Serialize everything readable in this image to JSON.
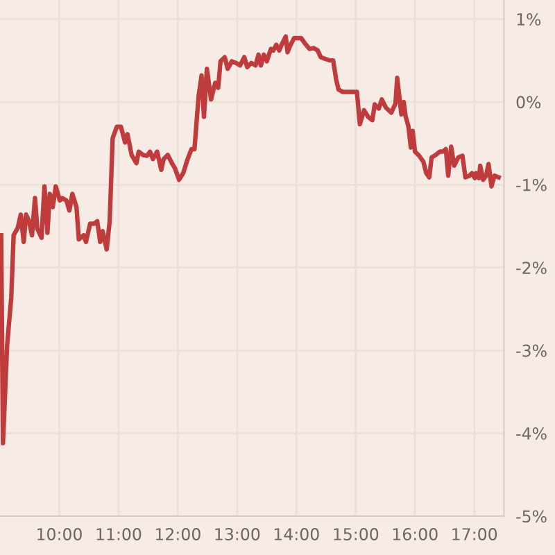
{
  "chart_data": {
    "type": "line",
    "xlim": [
      9,
      17.5
    ],
    "ylim": [
      -5,
      1.23
    ],
    "xticks": [
      {
        "value": 10,
        "label": "10:00"
      },
      {
        "value": 11,
        "label": "11:00"
      },
      {
        "value": 12,
        "label": "12:00"
      },
      {
        "value": 13,
        "label": "13:00"
      },
      {
        "value": 14,
        "label": "14:00"
      },
      {
        "value": 15,
        "label": "15:00"
      },
      {
        "value": 16,
        "label": "16:00"
      },
      {
        "value": 17,
        "label": "17:00"
      }
    ],
    "yticks": [
      {
        "value": 1,
        "label": "1%"
      },
      {
        "value": 0,
        "label": "0%"
      },
      {
        "value": -1,
        "label": "-1%"
      },
      {
        "value": -2,
        "label": "-2%"
      },
      {
        "value": -3,
        "label": "-3%"
      },
      {
        "value": -4,
        "label": "-4%"
      },
      {
        "value": -5,
        "label": "-5%"
      }
    ],
    "grid": true,
    "legend": false,
    "marker": "none",
    "line_style": "solid",
    "series": [
      {
        "color": "#c03b3b",
        "x": [
          9.02,
          9.05,
          9.12,
          9.19,
          9.23,
          9.3,
          9.35,
          9.4,
          9.44,
          9.49,
          9.54,
          9.59,
          9.63,
          9.7,
          9.75,
          9.8,
          9.84,
          9.89,
          9.94,
          10.01,
          10.05,
          10.12,
          10.17,
          10.22,
          10.29,
          10.33,
          10.41,
          10.45,
          10.52,
          10.59,
          10.64,
          10.69,
          10.73,
          10.8,
          10.85,
          10.9,
          10.97,
          11.04,
          11.11,
          11.15,
          11.22,
          11.3,
          11.34,
          11.41,
          11.48,
          11.53,
          11.58,
          11.65,
          11.72,
          11.76,
          11.83,
          11.9,
          11.95,
          12.02,
          12.09,
          12.16,
          12.23,
          12.28,
          12.35,
          12.4,
          12.44,
          12.49,
          12.56,
          12.63,
          12.68,
          12.72,
          12.79,
          12.84,
          12.91,
          12.98,
          13.05,
          13.12,
          13.17,
          13.24,
          13.31,
          13.36,
          13.4,
          13.45,
          13.5,
          13.57,
          13.61,
          13.66,
          13.71,
          13.75,
          13.82,
          13.85,
          13.89,
          13.96,
          14.04,
          14.08,
          14.15,
          14.22,
          14.29,
          14.36,
          14.41,
          14.48,
          14.57,
          14.62,
          14.67,
          14.71,
          14.78,
          14.85,
          14.97,
          15.02,
          15.07,
          15.14,
          15.21,
          15.28,
          15.32,
          15.39,
          15.44,
          15.51,
          15.6,
          15.67,
          15.7,
          15.77,
          15.81,
          15.84,
          15.89,
          15.93,
          15.96,
          16.0,
          16.07,
          16.14,
          16.19,
          16.24,
          16.28,
          16.35,
          16.42,
          16.47,
          16.52,
          16.56,
          16.61,
          16.66,
          16.73,
          16.8,
          16.85,
          16.92,
          16.96,
          17.01,
          17.03,
          17.08,
          17.1,
          17.15,
          17.2,
          17.24,
          17.29,
          17.34,
          17.41
        ],
        "values": [
          -1.61,
          -4.12,
          -2.94,
          -2.36,
          -1.61,
          -1.52,
          -1.36,
          -1.69,
          -1.36,
          -1.44,
          -1.61,
          -1.16,
          -1.53,
          -1.64,
          -1.02,
          -1.58,
          -1.11,
          -1.27,
          -1.02,
          -1.19,
          -1.16,
          -1.19,
          -1.31,
          -1.11,
          -1.27,
          -1.66,
          -1.61,
          -1.69,
          -1.47,
          -1.47,
          -1.44,
          -1.69,
          -1.56,
          -1.78,
          -1.44,
          -0.44,
          -0.3,
          -0.3,
          -0.49,
          -0.39,
          -0.64,
          -0.74,
          -0.6,
          -0.64,
          -0.65,
          -0.6,
          -0.69,
          -0.6,
          -0.82,
          -0.69,
          -0.64,
          -0.74,
          -0.8,
          -0.94,
          -0.86,
          -0.7,
          -0.57,
          -0.57,
          0.07,
          0.32,
          -0.18,
          0.4,
          0.03,
          0.23,
          0.17,
          0.49,
          0.54,
          0.4,
          0.49,
          0.47,
          0.44,
          0.54,
          0.42,
          0.47,
          0.44,
          0.57,
          0.44,
          0.57,
          0.49,
          0.64,
          0.62,
          0.69,
          0.62,
          0.69,
          0.79,
          0.6,
          0.67,
          0.77,
          0.77,
          0.77,
          0.7,
          0.64,
          0.65,
          0.62,
          0.54,
          0.52,
          0.5,
          0.5,
          0.27,
          0.15,
          0.12,
          0.12,
          0.12,
          0.12,
          -0.27,
          -0.1,
          -0.18,
          -0.22,
          -0.03,
          -0.08,
          0.03,
          -0.07,
          -0.13,
          -0.02,
          0.29,
          -0.15,
          0.0,
          -0.17,
          -0.3,
          -0.55,
          -0.35,
          -0.6,
          -0.65,
          -0.72,
          -0.86,
          -0.91,
          -0.67,
          -0.64,
          -0.6,
          -0.6,
          -0.57,
          -0.89,
          -0.54,
          -0.77,
          -0.67,
          -0.65,
          -0.91,
          -0.89,
          -0.86,
          -0.92,
          -0.86,
          -0.92,
          -0.77,
          -0.94,
          -0.89,
          -0.75,
          -1.02,
          -0.89,
          -0.91
        ]
      }
    ]
  }
}
